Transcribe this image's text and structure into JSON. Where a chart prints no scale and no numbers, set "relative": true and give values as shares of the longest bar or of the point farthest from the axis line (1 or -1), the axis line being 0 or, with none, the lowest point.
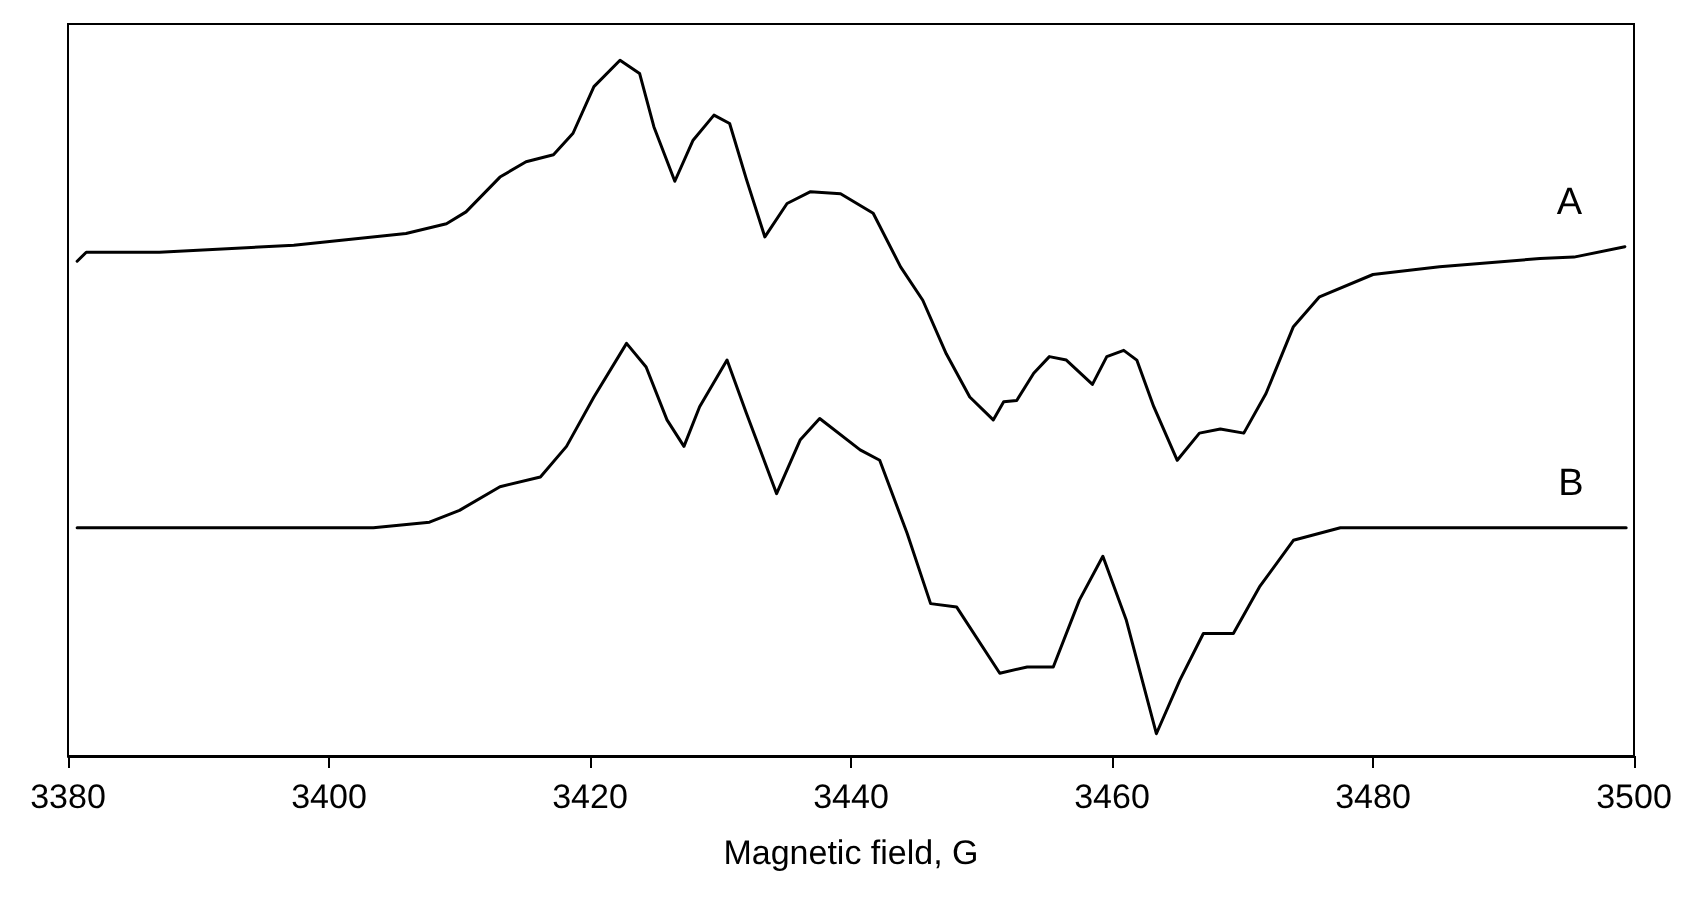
{
  "chart_data": {
    "type": "line",
    "relative": true,
    "xlabel": "Magnetic field, G",
    "xlim": [
      3380,
      3500
    ],
    "xticks": [
      3380,
      3400,
      3420,
      3440,
      3460,
      3480,
      3500
    ],
    "grid": false,
    "marker": "none",
    "line_style": "solid",
    "series": [
      {
        "name": "A",
        "color": "#000000",
        "x": [
          3380.7,
          3381.4,
          3387.0,
          3397.3,
          3405.9,
          3409.0,
          3410.5,
          3413.1,
          3415.1,
          3417.2,
          3418.7,
          3420.3,
          3422.3,
          3423.8,
          3424.9,
          3426.5,
          3427.9,
          3429.5,
          3430.7,
          3432.0,
          3433.4,
          3435.1,
          3436.9,
          3439.2,
          3441.7,
          3443.8,
          3445.5,
          3447.3,
          3449.1,
          3450.9,
          3451.7,
          3452.7,
          3454.0,
          3455.2,
          3456.5,
          3458.5,
          3459.6,
          3460.9,
          3461.9,
          3463.2,
          3465.0,
          3466.7,
          3468.3,
          3470.1,
          3471.8,
          3473.9,
          3475.9,
          3480.0,
          3485.1,
          3492.8,
          3495.4,
          3499.3
        ],
        "values": [
          0.711,
          0.724,
          0.724,
          0.734,
          0.751,
          0.765,
          0.782,
          0.832,
          0.854,
          0.864,
          0.895,
          0.962,
          1.0,
          0.981,
          0.904,
          0.826,
          0.885,
          0.921,
          0.909,
          0.828,
          0.746,
          0.794,
          0.811,
          0.808,
          0.78,
          0.703,
          0.655,
          0.578,
          0.516,
          0.483,
          0.509,
          0.511,
          0.55,
          0.574,
          0.569,
          0.534,
          0.574,
          0.583,
          0.569,
          0.502,
          0.425,
          0.464,
          0.47,
          0.464,
          0.521,
          0.617,
          0.66,
          0.692,
          0.703,
          0.715,
          0.717,
          0.732
        ]
      },
      {
        "name": "B",
        "color": "#000000",
        "x": [
          3380.7,
          3403.4,
          3407.7,
          3410.0,
          3413.1,
          3416.2,
          3418.2,
          3420.3,
          3422.8,
          3424.3,
          3425.9,
          3427.2,
          3428.4,
          3430.5,
          3432.0,
          3434.3,
          3436.1,
          3437.6,
          3440.7,
          3442.2,
          3444.3,
          3446.1,
          3448.1,
          3451.4,
          3453.5,
          3455.5,
          3457.5,
          3459.3,
          3461.1,
          3463.4,
          3465.2,
          3467.0,
          3469.3,
          3471.3,
          3473.9,
          3477.5,
          3499.4
        ],
        "values": [
          0.328,
          0.328,
          0.336,
          0.353,
          0.387,
          0.401,
          0.445,
          0.516,
          0.593,
          0.559,
          0.483,
          0.445,
          0.502,
          0.569,
          0.492,
          0.377,
          0.454,
          0.485,
          0.44,
          0.425,
          0.32,
          0.219,
          0.214,
          0.119,
          0.128,
          0.128,
          0.224,
          0.287,
          0.195,
          0.032,
          0.109,
          0.176,
          0.176,
          0.243,
          0.31,
          0.328,
          0.328
        ]
      }
    ]
  }
}
